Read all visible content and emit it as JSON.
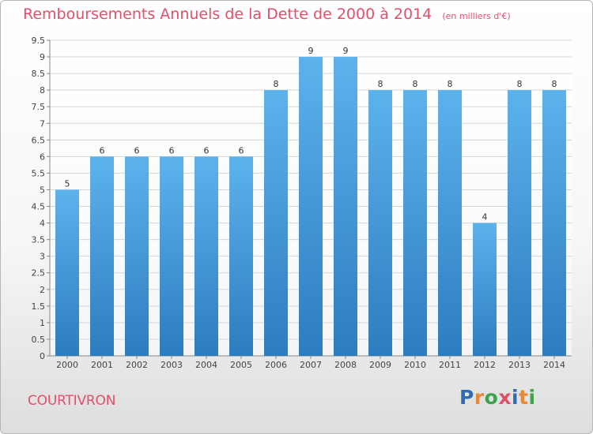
{
  "header": {
    "title": "Remboursements Annuels de la Dette de 2000 à 2014",
    "subtitle": "(en milliers d'€)"
  },
  "footer": {
    "commune": "COURTIVRON",
    "brand": "Proxiti",
    "brand_letters": [
      {
        "ch": "P",
        "color": "#2f6db3"
      },
      {
        "ch": "r",
        "color": "#e8893a"
      },
      {
        "ch": "o",
        "color": "#3fa34d"
      },
      {
        "ch": "x",
        "color": "#e0506b"
      },
      {
        "ch": "i",
        "color": "#2f6db3"
      },
      {
        "ch": "t",
        "color": "#e8893a"
      },
      {
        "ch": "i",
        "color": "#3fa34d"
      }
    ]
  },
  "chart_data": {
    "type": "bar",
    "title": "Remboursements Annuels de la Dette de 2000 à 2014",
    "subtitle": "(en milliers d'€)",
    "xlabel": "",
    "ylabel": "",
    "categories": [
      "2000",
      "2001",
      "2002",
      "2003",
      "2004",
      "2005",
      "2006",
      "2007",
      "2008",
      "2009",
      "2010",
      "2011",
      "2012",
      "2013",
      "2014"
    ],
    "values": [
      5,
      6,
      6,
      6,
      6,
      6,
      8,
      9,
      9,
      8,
      8,
      8,
      4,
      8,
      8
    ],
    "data_labels": [
      "5",
      "6",
      "6",
      "6",
      "6",
      "6",
      "8",
      "9",
      "9",
      "8",
      "8",
      "8",
      "4",
      "8",
      "8"
    ],
    "ylim": [
      0,
      9.5
    ],
    "yticks": [
      0,
      0.5,
      1,
      1.5,
      2,
      2.5,
      3,
      3.5,
      4,
      4.5,
      5,
      5.5,
      6,
      6.5,
      7,
      7.5,
      8,
      8.5,
      9,
      9.5
    ],
    "ytick_labels": [
      "0",
      "0.5",
      "1",
      "1.5",
      "2",
      "2.5",
      "3",
      "3.5",
      "4",
      "4.5",
      "5",
      "5.5",
      "6",
      "6.5",
      "7",
      "7.5",
      "8",
      "8.5",
      "9",
      "9.5"
    ],
    "grid": true,
    "legend": "none",
    "colors": {
      "bar_top": "#5cb3ec",
      "bar_bottom": "#2d7cc1",
      "grid": "#d5d5d5",
      "axis": "#888888",
      "title": "#e0506b"
    }
  }
}
